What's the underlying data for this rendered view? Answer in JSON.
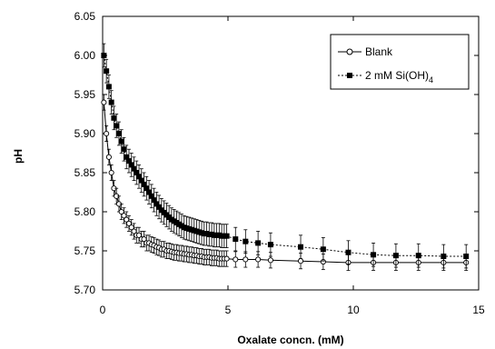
{
  "chart_data": {
    "type": "scatter",
    "xlabel": "Oxalate concn. (mM)",
    "ylabel": "pH",
    "xlim": [
      0,
      15
    ],
    "ylim": [
      5.7,
      6.05
    ],
    "x_ticks": [
      "0",
      "5",
      "10",
      "15"
    ],
    "y_ticks": [
      "5.70",
      "5.75",
      "5.80",
      "5.85",
      "5.90",
      "5.95",
      "6.00",
      "6.05"
    ],
    "grid": false,
    "legend_position": "top-right",
    "series": [
      {
        "name": "Blank",
        "marker": "open-circle",
        "line": "solid",
        "color": "#000000",
        "x": [
          0.05,
          0.15,
          0.25,
          0.35,
          0.45,
          0.55,
          0.65,
          0.75,
          0.85,
          0.95,
          1.05,
          1.15,
          1.25,
          1.35,
          1.45,
          1.55,
          1.65,
          1.75,
          1.85,
          1.95,
          2.05,
          2.15,
          2.25,
          2.35,
          2.45,
          2.55,
          2.65,
          2.75,
          2.85,
          2.95,
          3.05,
          3.15,
          3.25,
          3.35,
          3.45,
          3.55,
          3.65,
          3.75,
          3.85,
          3.95,
          4.05,
          4.15,
          4.25,
          4.35,
          4.45,
          4.55,
          4.65,
          4.75,
          4.85,
          4.95,
          5.3,
          5.7,
          6.2,
          6.7,
          7.9,
          8.8,
          9.8,
          10.8,
          11.7,
          12.6,
          13.6,
          14.5
        ],
        "y": [
          5.94,
          5.9,
          5.87,
          5.85,
          5.83,
          5.82,
          5.81,
          5.8,
          5.795,
          5.79,
          5.785,
          5.78,
          5.775,
          5.77,
          5.77,
          5.765,
          5.765,
          5.76,
          5.76,
          5.758,
          5.757,
          5.755,
          5.754,
          5.752,
          5.752,
          5.75,
          5.75,
          5.749,
          5.748,
          5.748,
          5.747,
          5.747,
          5.746,
          5.746,
          5.745,
          5.745,
          5.744,
          5.744,
          5.743,
          5.743,
          5.742,
          5.742,
          5.742,
          5.741,
          5.741,
          5.741,
          5.74,
          5.74,
          5.74,
          5.74,
          5.739,
          5.739,
          5.739,
          5.738,
          5.737,
          5.736,
          5.735,
          5.735,
          5.735,
          5.735,
          5.735,
          5.735
        ],
        "error": 0.01
      },
      {
        "name": "2 mM Si(OH)4",
        "marker": "filled-square",
        "line": "dotted",
        "color": "#000000",
        "x": [
          0.05,
          0.15,
          0.25,
          0.35,
          0.45,
          0.55,
          0.65,
          0.75,
          0.85,
          0.95,
          1.05,
          1.15,
          1.25,
          1.35,
          1.45,
          1.55,
          1.65,
          1.75,
          1.85,
          1.95,
          2.05,
          2.15,
          2.25,
          2.35,
          2.45,
          2.55,
          2.65,
          2.75,
          2.85,
          2.95,
          3.05,
          3.15,
          3.25,
          3.35,
          3.45,
          3.55,
          3.65,
          3.75,
          3.85,
          3.95,
          4.05,
          4.15,
          4.25,
          4.35,
          4.45,
          4.55,
          4.65,
          4.75,
          4.85,
          4.95,
          5.3,
          5.7,
          6.2,
          6.7,
          7.9,
          8.8,
          9.8,
          10.8,
          11.7,
          12.6,
          13.6,
          14.5
        ],
        "y": [
          6.0,
          5.98,
          5.96,
          5.94,
          5.92,
          5.91,
          5.9,
          5.89,
          5.88,
          5.87,
          5.865,
          5.86,
          5.855,
          5.85,
          5.845,
          5.84,
          5.835,
          5.83,
          5.825,
          5.82,
          5.815,
          5.81,
          5.806,
          5.802,
          5.799,
          5.796,
          5.793,
          5.79,
          5.788,
          5.786,
          5.784,
          5.782,
          5.78,
          5.779,
          5.778,
          5.777,
          5.776,
          5.775,
          5.774,
          5.773,
          5.772,
          5.772,
          5.771,
          5.771,
          5.77,
          5.77,
          5.77,
          5.769,
          5.769,
          5.769,
          5.765,
          5.762,
          5.76,
          5.758,
          5.755,
          5.752,
          5.748,
          5.745,
          5.744,
          5.744,
          5.743,
          5.743
        ],
        "error": 0.015
      }
    ]
  }
}
